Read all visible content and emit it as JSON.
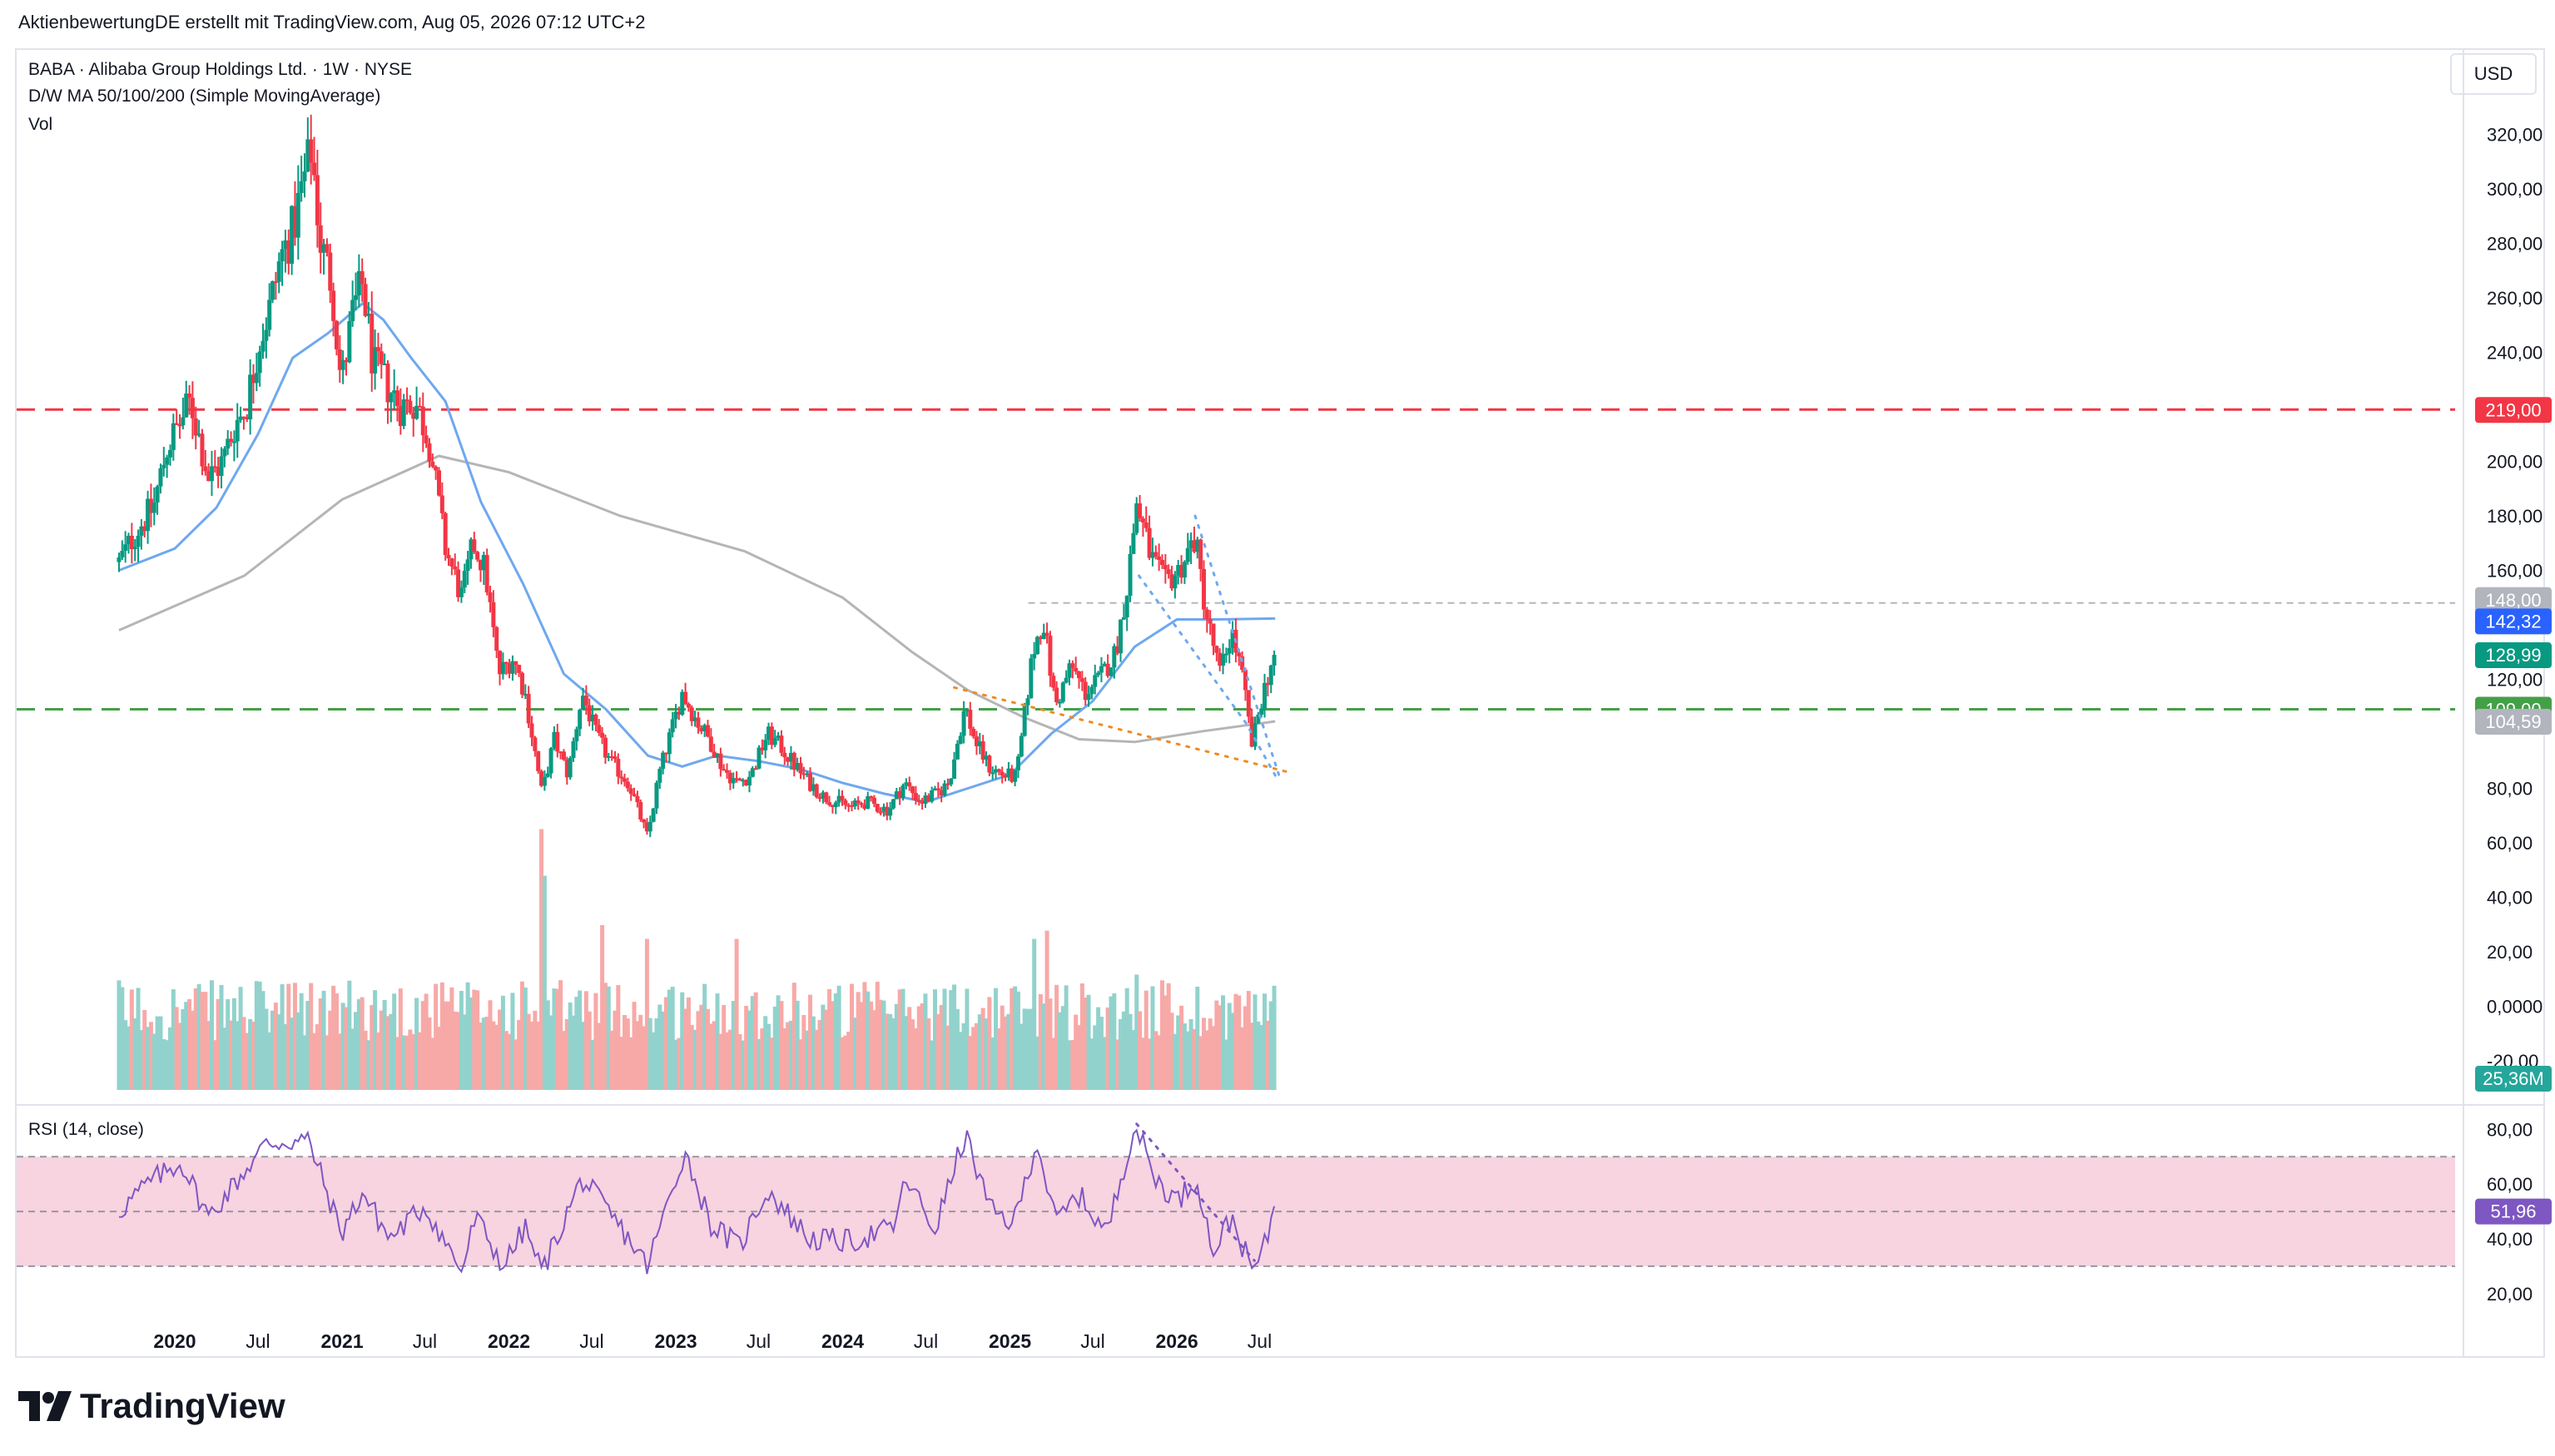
{
  "header": {
    "text": "AktienbewertungDE erstellt mit TradingView.com, Aug 05, 2026 07:12 UTC+2"
  },
  "legend": {
    "symbol": "BABA · Alibaba Group Holdings Ltd. · 1W · NYSE",
    "ma": "D/W MA 50/100/200 (Simple MovingAverage)",
    "vol": "Vol"
  },
  "currency_button": "USD",
  "brand": "TradingView",
  "colors": {
    "up": "#089981",
    "down": "#f23645",
    "up_vol": "#92d2cc",
    "down_vol": "#f7a9a7",
    "ma_fast": "#6fa8ef",
    "ma_slow": "#b5b5b5",
    "resistance": "#f23645",
    "support": "#43a047",
    "rsi": "#7e57c2",
    "rsi_band": "#f8d3e0",
    "trend_blue": "#6fa8ef",
    "trend_orange": "#f08a24"
  },
  "chart_data": [
    {
      "type": "candlestick",
      "title": "BABA · Alibaba Group Holdings Ltd. · 1W · NYSE",
      "xlabel": "",
      "ylabel": "USD",
      "x_ticks": [
        "2020",
        "Jul",
        "2021",
        "Jul",
        "2022",
        "Jul",
        "2023",
        "Jul",
        "2024",
        "Jul",
        "2025",
        "Jul",
        "2026",
        "Jul"
      ],
      "y_ticks": [
        "320,00",
        "300,00",
        "280,00",
        "260,00",
        "240,00",
        "200,00",
        "180,00",
        "160,00",
        "120,00",
        "80,00",
        "60,00",
        "40,00",
        "20,00",
        "0,0000",
        "-20,00"
      ],
      "ylim": [
        -30,
        330
      ],
      "x_range": [
        "2019-09",
        "2026-09"
      ],
      "close_path": [
        [
          "2019-09-01",
          163
        ],
        [
          "2019-10-15",
          176
        ],
        [
          "2019-11-15",
          183
        ],
        [
          "2019-12-15",
          205
        ],
        [
          "2020-01-15",
          215
        ],
        [
          "2020-02-05",
          222
        ],
        [
          "2020-03-15",
          194
        ],
        [
          "2020-04-15",
          200
        ],
        [
          "2020-05-10",
          213
        ],
        [
          "2020-06-05",
          220
        ],
        [
          "2020-07-05",
          245
        ],
        [
          "2020-07-25",
          255
        ],
        [
          "2020-08-20",
          275
        ],
        [
          "2020-09-15",
          285
        ],
        [
          "2020-10-05",
          300
        ],
        [
          "2020-10-26",
          315
        ],
        [
          "2020-11-15",
          280
        ],
        [
          "2020-12-10",
          265
        ],
        [
          "2020-12-30",
          228
        ],
        [
          "2021-01-25",
          255
        ],
        [
          "2021-02-15",
          265
        ],
        [
          "2021-03-10",
          235
        ],
        [
          "2021-04-10",
          228
        ],
        [
          "2021-05-10",
          220
        ],
        [
          "2021-06-10",
          222
        ],
        [
          "2021-07-10",
          208
        ],
        [
          "2021-08-15",
          168
        ],
        [
          "2021-09-20",
          150
        ],
        [
          "2021-10-15",
          170
        ],
        [
          "2021-11-10",
          160
        ],
        [
          "2021-12-10",
          122
        ],
        [
          "2022-01-10",
          128
        ],
        [
          "2022-02-05",
          115
        ],
        [
          "2022-03-14",
          78
        ],
        [
          "2022-04-10",
          98
        ],
        [
          "2022-05-10",
          85
        ],
        [
          "2022-06-10",
          115
        ],
        [
          "2022-07-10",
          100
        ],
        [
          "2022-08-10",
          90
        ],
        [
          "2022-09-20",
          82
        ],
        [
          "2022-10-31",
          62
        ],
        [
          "2022-11-25",
          85
        ],
        [
          "2023-01-15",
          115
        ],
        [
          "2023-02-15",
          105
        ],
        [
          "2023-03-15",
          98
        ],
        [
          "2023-04-15",
          87
        ],
        [
          "2023-05-15",
          82
        ],
        [
          "2023-06-15",
          85
        ],
        [
          "2023-07-20",
          100
        ],
        [
          "2023-08-20",
          95
        ],
        [
          "2023-09-20",
          88
        ],
        [
          "2023-10-20",
          82
        ],
        [
          "2023-11-20",
          77
        ],
        [
          "2024-01-20",
          73
        ],
        [
          "2024-02-20",
          75
        ],
        [
          "2024-04-10",
          72
        ],
        [
          "2024-05-15",
          82
        ],
        [
          "2024-06-20",
          75
        ],
        [
          "2024-07-25",
          78
        ],
        [
          "2024-08-20",
          82
        ],
        [
          "2024-09-25",
          110
        ],
        [
          "2024-10-15",
          98
        ],
        [
          "2024-11-15",
          88
        ],
        [
          "2024-12-15",
          85
        ],
        [
          "2025-01-15",
          84
        ],
        [
          "2025-02-20",
          130
        ],
        [
          "2025-03-15",
          142
        ],
        [
          "2025-04-10",
          110
        ],
        [
          "2025-05-15",
          125
        ],
        [
          "2025-06-15",
          115
        ],
        [
          "2025-07-15",
          120
        ],
        [
          "2025-08-20",
          130
        ],
        [
          "2025-09-15",
          155
        ],
        [
          "2025-10-05",
          185
        ],
        [
          "2025-11-05",
          165
        ],
        [
          "2025-12-05",
          155
        ],
        [
          "2026-01-05",
          160
        ],
        [
          "2026-02-10",
          172
        ],
        [
          "2026-03-05",
          145
        ],
        [
          "2026-04-05",
          122
        ],
        [
          "2026-05-01",
          138
        ],
        [
          "2026-05-25",
          120
        ],
        [
          "2026-06-15",
          95
        ],
        [
          "2026-07-01",
          110
        ],
        [
          "2026-07-25",
          125
        ],
        [
          "2026-08-04",
          128.99
        ]
      ],
      "ma_fast": [
        [
          "2019-09-01",
          160
        ],
        [
          "2020-01-01",
          168
        ],
        [
          "2020-04-01",
          183
        ],
        [
          "2020-07-01",
          210
        ],
        [
          "2020-09-15",
          238
        ],
        [
          "2020-12-01",
          247
        ],
        [
          "2021-02-15",
          258
        ],
        [
          "2021-04-01",
          252
        ],
        [
          "2021-06-01",
          238
        ],
        [
          "2021-08-15",
          222
        ],
        [
          "2021-11-01",
          185
        ],
        [
          "2022-02-01",
          155
        ],
        [
          "2022-05-01",
          122
        ],
        [
          "2022-08-01",
          109
        ],
        [
          "2022-11-01",
          92
        ],
        [
          "2023-01-15",
          88
        ],
        [
          "2023-04-01",
          92
        ],
        [
          "2023-07-01",
          90
        ],
        [
          "2023-10-01",
          87
        ],
        [
          "2024-01-01",
          82
        ],
        [
          "2024-04-01",
          78
        ],
        [
          "2024-07-01",
          75
        ],
        [
          "2024-10-01",
          80
        ],
        [
          "2025-01-01",
          85
        ],
        [
          "2025-04-01",
          100
        ],
        [
          "2025-07-01",
          112
        ],
        [
          "2025-10-01",
          132
        ],
        [
          "2026-01-01",
          142
        ],
        [
          "2026-04-01",
          142
        ],
        [
          "2026-08-04",
          142.32
        ]
      ],
      "ma_slow": [
        [
          "2019-09-01",
          138
        ],
        [
          "2020-06-01",
          158
        ],
        [
          "2021-01-01",
          186
        ],
        [
          "2021-08-01",
          202
        ],
        [
          "2022-01-01",
          196
        ],
        [
          "2022-09-01",
          180
        ],
        [
          "2023-06-01",
          167
        ],
        [
          "2024-01-01",
          150
        ],
        [
          "2024-06-01",
          130
        ],
        [
          "2024-10-01",
          116
        ],
        [
          "2025-02-01",
          106
        ],
        [
          "2025-06-01",
          98
        ],
        [
          "2025-10-01",
          97
        ],
        [
          "2026-03-01",
          101
        ],
        [
          "2026-08-04",
          104.59
        ]
      ],
      "horizontal_lines": [
        {
          "value": 219,
          "label": "219,00",
          "style": "dashed",
          "color": "#f23645"
        },
        {
          "value": 109,
          "label": "109,00",
          "style": "dashed",
          "color": "#43a047"
        },
        {
          "value": 148,
          "label": "148,00",
          "style": "dashed",
          "color": "#b2b5be"
        }
      ],
      "trendlines": [
        {
          "color": "#6fa8ef",
          "style": "dotted",
          "points": [
            [
              "2025-10-10",
              158
            ],
            [
              "2026-06-01",
              104
            ],
            [
              "2026-08-10",
              83
            ]
          ]
        },
        {
          "color": "#6fa8ef",
          "style": "dotted",
          "points": [
            [
              "2026-02-10",
              180
            ],
            [
              "2026-08-12",
              85
            ]
          ]
        },
        {
          "color": "#f08a24",
          "style": "dotted",
          "points": [
            [
              "2024-09-01",
              117
            ],
            [
              "2026-09-01",
              86
            ]
          ]
        }
      ],
      "price_labels": [
        {
          "text": "148,00",
          "value": 148,
          "bg": "#b2b5be"
        },
        {
          "text": "142,32",
          "value": 142.32,
          "bg": "#2962ff"
        },
        {
          "text": "128,99",
          "value": 128.99,
          "bg": "#089981"
        },
        {
          "text": "109,00",
          "value": 109,
          "bg": "#43a047"
        },
        {
          "text": "104,59",
          "value": 104.59,
          "bg": "#b2b5be"
        },
        {
          "text": "219,00",
          "value": 219,
          "bg": "#f23645"
        }
      ],
      "volume_label": {
        "text": "25,36M",
        "bg": "#26a69a"
      },
      "volume_peaks": [
        [
          "2022-03-14",
          95
        ],
        [
          "2022-03-21",
          78
        ],
        [
          "2022-07-25",
          60
        ],
        [
          "2022-10-31",
          55
        ],
        [
          "2023-05-15",
          55
        ],
        [
          "2025-02-20",
          55
        ],
        [
          "2025-03-20",
          58
        ],
        [
          "2025-10-05",
          42
        ]
      ]
    },
    {
      "type": "line",
      "title": "RSI (14, close)",
      "y_ticks": [
        "80,00",
        "60,00",
        "40,00",
        "20,00"
      ],
      "ylim": [
        15,
        82
      ],
      "bands": [
        30,
        70
      ],
      "midline": 50,
      "current": {
        "text": "51,96",
        "value": 51.96
      },
      "path": [
        [
          "2019-09-01",
          50
        ],
        [
          "2019-11-01",
          60
        ],
        [
          "2020-01-15",
          68
        ],
        [
          "2020-03-15",
          48
        ],
        [
          "2020-05-01",
          58
        ],
        [
          "2020-07-20",
          75
        ],
        [
          "2020-10-20",
          76
        ],
        [
          "2020-12-30",
          42
        ],
        [
          "2021-02-15",
          57
        ],
        [
          "2021-04-15",
          40
        ],
        [
          "2021-07-01",
          52
        ],
        [
          "2021-09-20",
          28
        ],
        [
          "2021-10-20",
          48
        ],
        [
          "2021-12-20",
          30
        ],
        [
          "2022-02-05",
          44
        ],
        [
          "2022-03-14",
          28
        ],
        [
          "2022-06-10",
          62
        ],
        [
          "2022-09-20",
          40
        ],
        [
          "2022-10-31",
          30
        ],
        [
          "2023-01-20",
          72
        ],
        [
          "2023-03-20",
          45
        ],
        [
          "2023-05-20",
          37
        ],
        [
          "2023-07-20",
          58
        ],
        [
          "2023-10-20",
          40
        ],
        [
          "2024-01-20",
          39
        ],
        [
          "2024-04-20",
          44
        ],
        [
          "2024-05-20",
          62
        ],
        [
          "2024-07-20",
          43
        ],
        [
          "2024-09-25",
          78
        ],
        [
          "2024-11-20",
          50
        ],
        [
          "2025-01-10",
          46
        ],
        [
          "2025-03-01",
          76
        ],
        [
          "2025-04-10",
          46
        ],
        [
          "2025-06-01",
          56
        ],
        [
          "2025-08-01",
          42
        ],
        [
          "2025-10-01",
          82
        ],
        [
          "2025-11-15",
          62
        ],
        [
          "2026-01-01",
          54
        ],
        [
          "2026-02-15",
          62
        ],
        [
          "2026-03-20",
          35
        ],
        [
          "2026-05-01",
          48
        ],
        [
          "2026-06-15",
          28
        ],
        [
          "2026-07-10",
          36
        ],
        [
          "2026-08-04",
          51.96
        ]
      ],
      "trendline": {
        "color": "#7e57c2",
        "style": "dotted",
        "points": [
          [
            "2025-10-05",
            82
          ],
          [
            "2026-06-20",
            32
          ]
        ]
      }
    }
  ]
}
